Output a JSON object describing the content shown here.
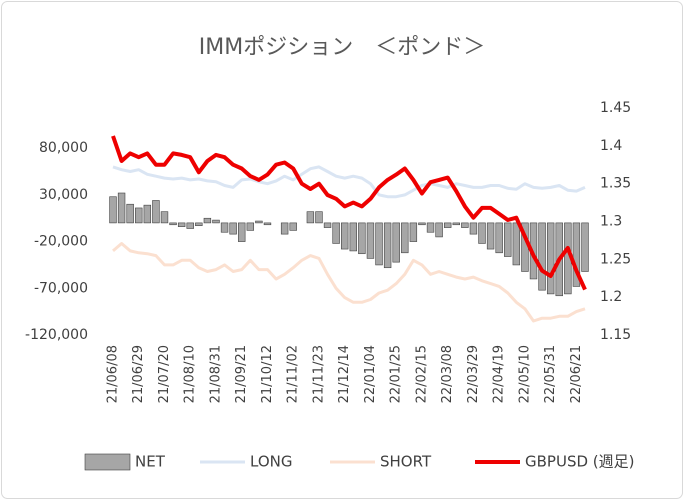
{
  "chart_data": {
    "type": "bar",
    "title": "IMMポジション　＜ポンド＞",
    "categories": [
      "21/06/08",
      null,
      null,
      "21/06/29",
      null,
      null,
      "21/07/20",
      null,
      null,
      "21/08/10",
      null,
      null,
      "21/08/31",
      null,
      null,
      "21/09/21",
      null,
      null,
      "21/10/12",
      null,
      null,
      "21/11/02",
      null,
      null,
      "21/11/23",
      null,
      null,
      "21/12/14",
      null,
      null,
      "22/01/04",
      null,
      null,
      "22/01/25",
      null,
      null,
      "22/02/15",
      null,
      null,
      "22/03/08",
      null,
      null,
      "22/03/29",
      null,
      null,
      "22/04/19",
      null,
      null,
      "22/05/10",
      null,
      null,
      "22/05/31",
      null,
      null,
      "22/06/21",
      null
    ],
    "series": [
      {
        "name": "NET",
        "type": "bar",
        "color": "#a6a6a6",
        "values": [
          28000,
          32000,
          20000,
          16000,
          19000,
          24000,
          12000,
          -2000,
          -4000,
          -6000,
          -3000,
          5000,
          3000,
          -10000,
          -12000,
          -20000,
          -8000,
          2000,
          -2000,
          0,
          -12000,
          -8000,
          0,
          12000,
          12000,
          -5000,
          -22000,
          -28000,
          -30000,
          -33000,
          -38000,
          -45000,
          -48000,
          -42000,
          -32000,
          -20000,
          -2000,
          -10000,
          -15000,
          -5000,
          -2000,
          -5000,
          -12000,
          -22000,
          -28000,
          -32000,
          -36000,
          -45000,
          -52000,
          -60000,
          -72000,
          -76000,
          -78000,
          -76000,
          -68000,
          -52000
        ]
      },
      {
        "name": "LONG",
        "type": "line",
        "color": "#dae5f3",
        "values": [
          60000,
          57000,
          55000,
          57000,
          52000,
          50000,
          48000,
          47000,
          48000,
          46000,
          47000,
          45000,
          44000,
          40000,
          38000,
          46000,
          47000,
          44000,
          42000,
          45000,
          50000,
          46000,
          52000,
          58000,
          60000,
          55000,
          50000,
          48000,
          50000,
          48000,
          42000,
          30000,
          28000,
          28000,
          30000,
          35000,
          40000,
          42000,
          40000,
          38000,
          42000,
          40000,
          38000,
          38000,
          40000,
          40000,
          37000,
          36000,
          42000,
          38000,
          37000,
          38000,
          40000,
          35000,
          34000,
          38000
        ]
      },
      {
        "name": "SHORT",
        "type": "line",
        "color": "#fbe0d0",
        "values": [
          -30000,
          -22000,
          -30000,
          -32000,
          -33000,
          -35000,
          -45000,
          -45000,
          -40000,
          -40000,
          -48000,
          -52000,
          -50000,
          -45000,
          -52000,
          -50000,
          -40000,
          -50000,
          -50000,
          -60000,
          -55000,
          -48000,
          -40000,
          -35000,
          -38000,
          -55000,
          -70000,
          -80000,
          -85000,
          -85000,
          -82000,
          -75000,
          -72000,
          -65000,
          -55000,
          -40000,
          -45000,
          -55000,
          -52000,
          -55000,
          -58000,
          -60000,
          -58000,
          -62000,
          -65000,
          -68000,
          -75000,
          -85000,
          -92000,
          -105000,
          -102000,
          -102000,
          -100000,
          -100000,
          -95000,
          -92000
        ]
      },
      {
        "name": "GBPUSD (週足)",
        "type": "line",
        "axis": "y2",
        "color": "#ee0000",
        "values": [
          1.413,
          1.38,
          1.39,
          1.385,
          1.39,
          1.375,
          1.375,
          1.39,
          1.388,
          1.385,
          1.365,
          1.38,
          1.388,
          1.385,
          1.375,
          1.37,
          1.36,
          1.355,
          1.362,
          1.375,
          1.378,
          1.37,
          1.35,
          1.343,
          1.35,
          1.335,
          1.33,
          1.32,
          1.325,
          1.32,
          1.33,
          1.345,
          1.355,
          1.362,
          1.37,
          1.355,
          1.337,
          1.352,
          1.355,
          1.358,
          1.34,
          1.32,
          1.305,
          1.318,
          1.318,
          1.31,
          1.302,
          1.305,
          1.28,
          1.255,
          1.235,
          1.228,
          1.25,
          1.265,
          1.235,
          1.21
        ]
      }
    ],
    "ylim": [
      -120000,
      123000
    ],
    "yticks": [
      {
        "value": -120000,
        "label": "-120,000"
      },
      {
        "value": -70000,
        "label": "-70,000"
      },
      {
        "value": -20000,
        "label": "-20,000"
      },
      {
        "value": 30000,
        "label": "30,000"
      },
      {
        "value": 80000,
        "label": "80,000"
      }
    ],
    "y2lim": [
      1.15,
      1.45
    ],
    "y2ticks": [
      1.15,
      1.2,
      1.25,
      1.3,
      1.35,
      1.4,
      1.45
    ],
    "grid": false,
    "legend": "bottom"
  }
}
